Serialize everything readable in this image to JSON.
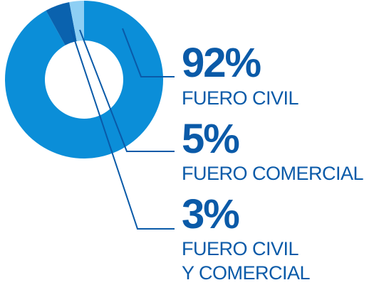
{
  "chart_data": {
    "type": "donut",
    "categories": [
      "FUERO CIVIL",
      "FUERO COMERCIAL",
      "FUERO CIVIL\nY COMERCIAL"
    ],
    "values": [
      92,
      5,
      3
    ],
    "value_labels": [
      "92%",
      "5%",
      "3%"
    ],
    "colors": [
      "#0b8ed8",
      "#0a62ae",
      "#8ecff4"
    ]
  }
}
